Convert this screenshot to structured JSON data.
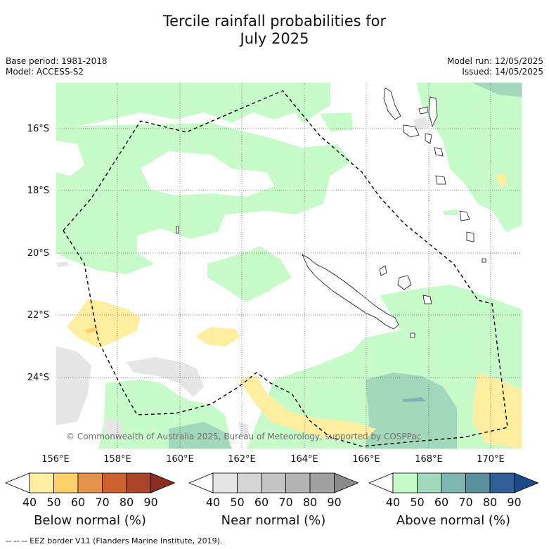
{
  "title_line1": "Tercile rainfall probabilities for",
  "title_line2": "July 2025",
  "meta": {
    "base_period": "Base period: 1981-2018",
    "model": "Model: ACCESS-S2",
    "model_run": "Model run: 12/05/2025",
    "issued": "Issued: 14/05/2025"
  },
  "latitudes": [
    "16°S",
    "18°S",
    "20°S",
    "22°S",
    "24°S"
  ],
  "longitudes": [
    "156°E",
    "158°E",
    "160°E",
    "162°E",
    "164°E",
    "166°E",
    "168°E",
    "170°E"
  ],
  "copyright": "© Commonwealth of Australia 2025, Bureau of Meteorology, supported by COSPPac",
  "colorbars": [
    {
      "title": "Below normal (%)",
      "ticks": [
        "40",
        "50",
        "60",
        "70",
        "80",
        "90"
      ],
      "colors": [
        "#ffffff",
        "#ffeea0",
        "#fed06a",
        "#e3914b",
        "#cd602f",
        "#ac4427",
        "#8c2c1e"
      ]
    },
    {
      "title": "Near normal (%)",
      "ticks": [
        "40",
        "50",
        "60",
        "70",
        "80",
        "90"
      ],
      "colors": [
        "#ffffff",
        "#e6e6e6",
        "#d5d5d5",
        "#c4c4c4",
        "#b3b3b3",
        "#a0a0a0",
        "#8a8a8a"
      ]
    },
    {
      "title": "Above normal (%)",
      "ticks": [
        "40",
        "50",
        "60",
        "70",
        "80",
        "90"
      ],
      "colors": [
        "#ffffff",
        "#c8fbca",
        "#a2d8bc",
        "#7fb6b1",
        "#5a8f9e",
        "#2f5f95",
        "#1c4a87"
      ]
    }
  ],
  "footnote": "--  --  -- EEZ border V11 (Flanders Marine Institute, 2019)."
}
